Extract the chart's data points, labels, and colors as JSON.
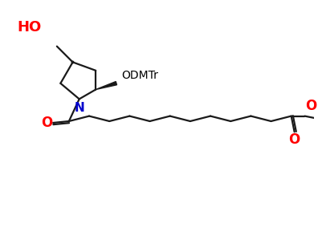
{
  "bg_color": "#ffffff",
  "HO_text": "HO",
  "HO_color": "#ff0000",
  "N_text": "N",
  "N_color": "#0000cc",
  "O_ketone_text": "O",
  "O_ketone_color": "#ff0000",
  "O_ester1_text": "O",
  "O_ester1_color": "#ff0000",
  "O_ester2_text": "O",
  "O_ester2_color": "#ff0000",
  "ODMTr_text": "ODMTr",
  "ODMTr_color": "#000000",
  "line_color": "#1a1a1a",
  "line_width": 1.6,
  "dbo": 0.022
}
